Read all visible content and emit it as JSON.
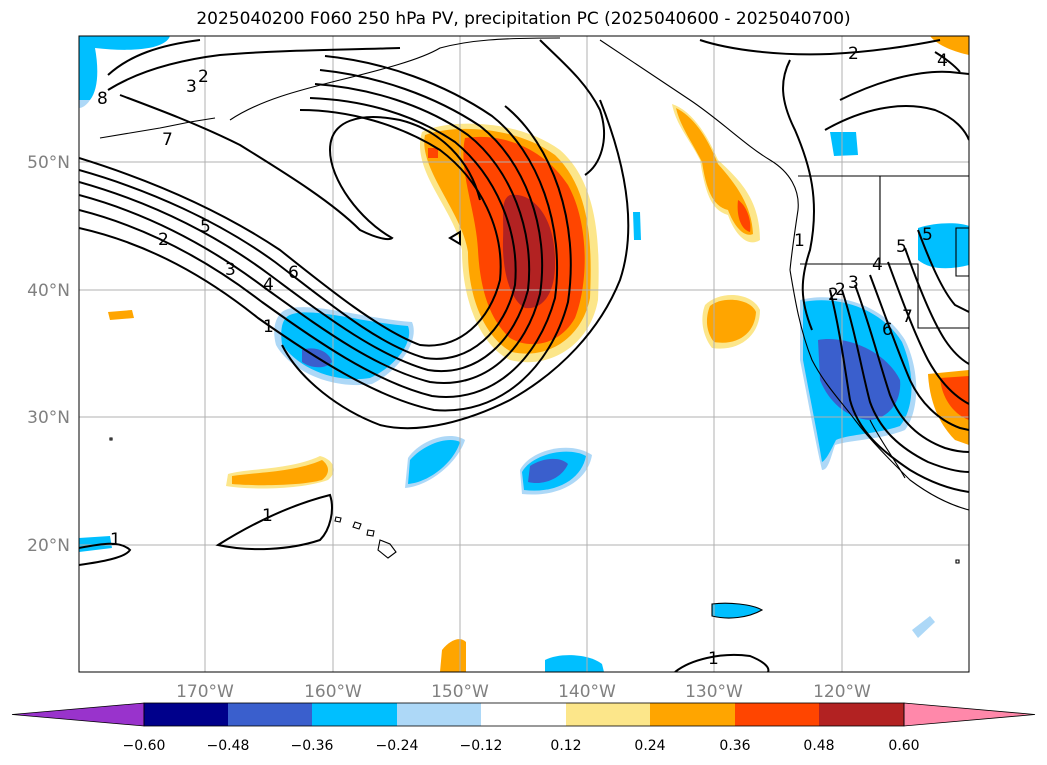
{
  "title": "2025040200 F060 250 hPa PV, precipitation PC (2025040600 - 2025040700)",
  "lat_labels": [
    "50°N",
    "40°N",
    "30°N",
    "20°N"
  ],
  "lon_labels": [
    "170°W",
    "160°W",
    "150°W",
    "140°W",
    "130°W",
    "120°W"
  ],
  "colorbar": {
    "ticks": [
      "−0.60",
      "−0.48",
      "−0.36",
      "−0.24",
      "−0.12",
      "0.12",
      "0.24",
      "0.36",
      "0.48",
      "0.60"
    ],
    "colors": [
      "#9933cc",
      "#00008b",
      "#3a5fcd",
      "#00bfff",
      "#add8f7",
      "#ffffff",
      "#fce68a",
      "#ffa500",
      "#ff4500",
      "#b22222",
      "#ff88aa"
    ]
  },
  "contour_labels": [
    "2",
    "3",
    "8",
    "7",
    "5",
    "2",
    "3",
    "4",
    "6",
    "1",
    "1",
    "1",
    "1",
    "2",
    "4",
    "1",
    "5",
    "3",
    "4",
    "6",
    "7",
    "2",
    "2",
    "5"
  ],
  "colors": {
    "grid": "#b0b0b0",
    "axis_label": "#808080"
  }
}
